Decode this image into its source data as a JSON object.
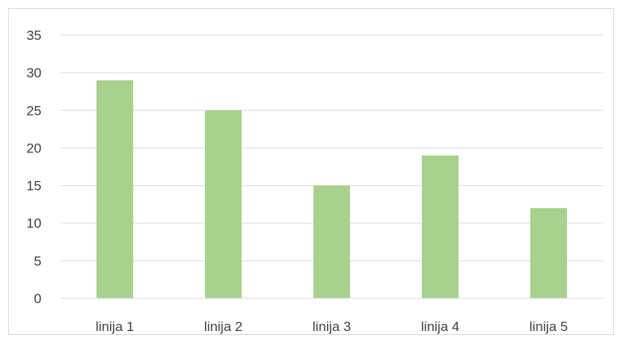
{
  "chart_data": {
    "type": "bar",
    "categories": [
      "linija 1",
      "linija 2",
      "linija 3",
      "linija 4",
      "linija 5"
    ],
    "values": [
      29,
      25,
      15,
      19,
      12
    ],
    "title": "",
    "xlabel": "",
    "ylabel": "",
    "ylim": [
      0,
      35
    ],
    "yticks": [
      0,
      5,
      10,
      15,
      20,
      25,
      30,
      35
    ],
    "grid": true,
    "legend": "none",
    "bar_color": "#a9d18e",
    "grid_color": "#d9d9d9",
    "axis_color": "#d9d9d9",
    "text_color": "#404040"
  }
}
